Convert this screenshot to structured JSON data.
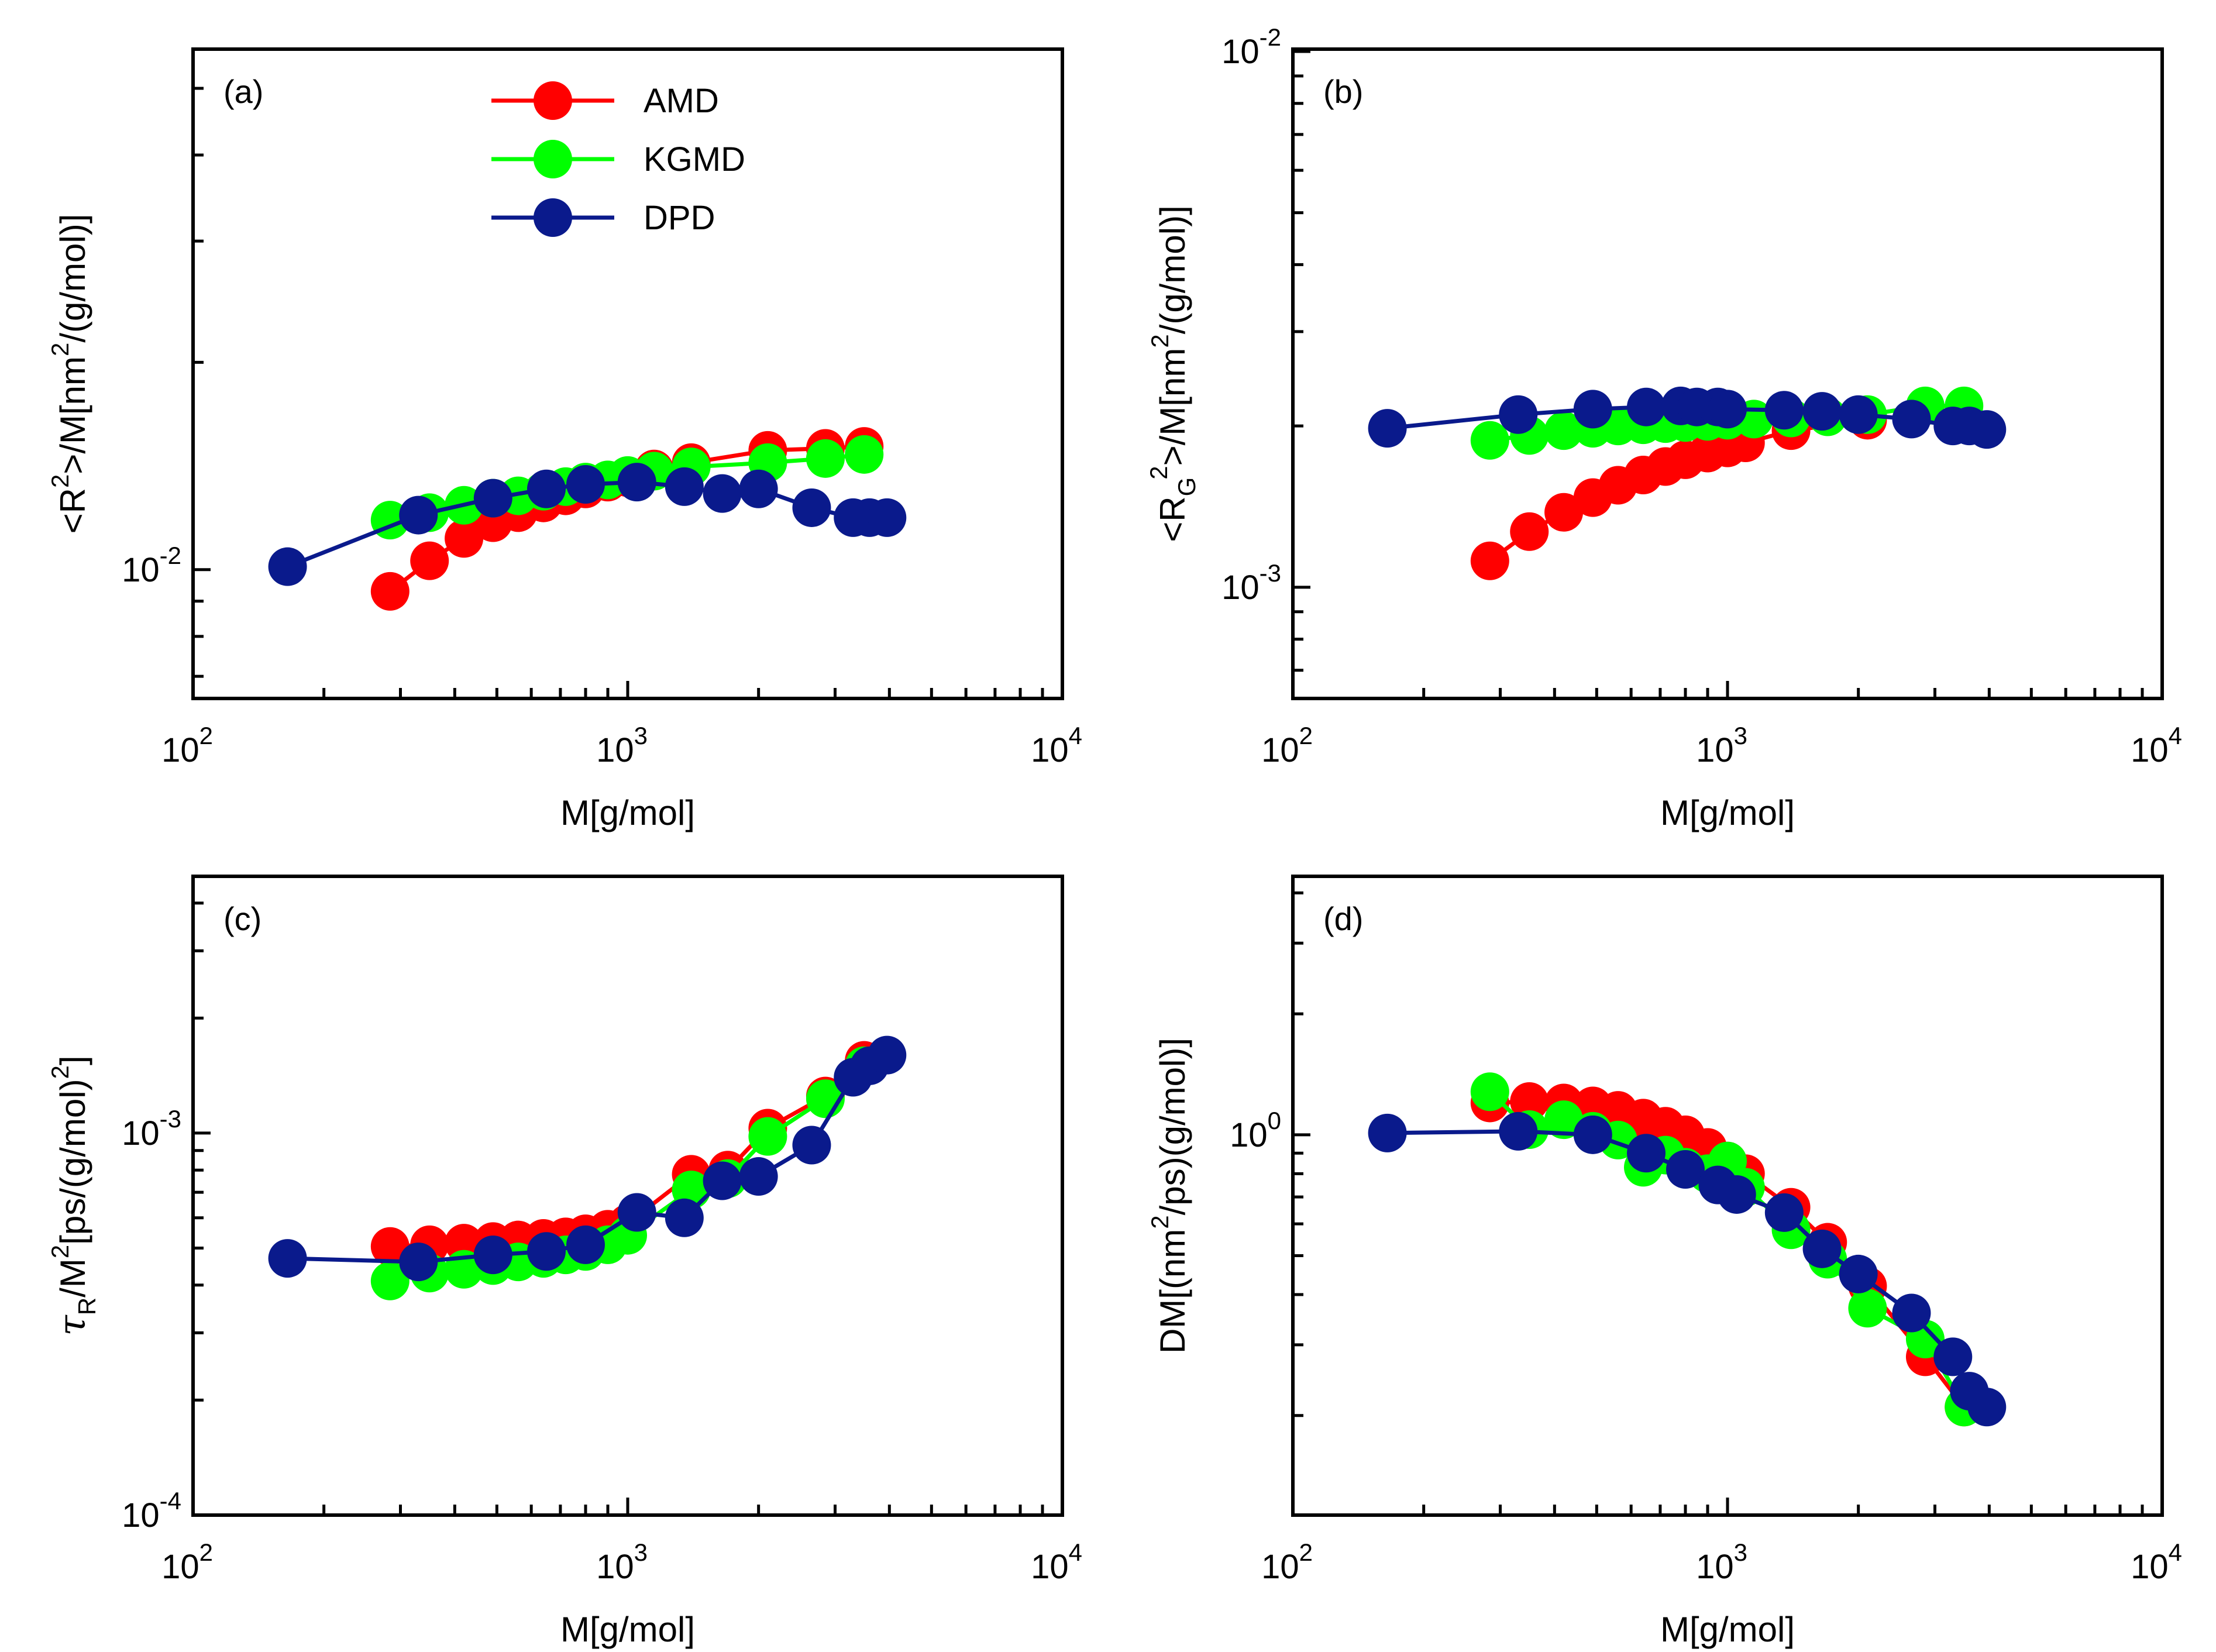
{
  "colors": {
    "AMD": "#ff0000",
    "KGMD": "#00ff00",
    "DPD": "#0a1a8c"
  },
  "legend": [
    {
      "name": "AMD",
      "color": "#ff0000"
    },
    {
      "name": "KGMD",
      "color": "#00ff00"
    },
    {
      "name": "DPD",
      "color": "#0a1a8c"
    }
  ],
  "chart_data": [
    {
      "id": "a",
      "type": "line",
      "panel_label": "(a)",
      "xscale": "log",
      "yscale": "log",
      "xlim": [
        100,
        10000
      ],
      "ylim": [
        0.0065,
        0.057
      ],
      "xlabel": "M[g/mol]",
      "ylabel": {
        "pre": "<R",
        "sup": "2",
        "mid": ">/M[nm",
        "sup2": "2",
        "post": "/(g/mol)]"
      },
      "xticks": [
        {
          "v": 100,
          "base": "10",
          "exp": "2"
        },
        {
          "v": 1000,
          "base": "10",
          "exp": "3"
        },
        {
          "v": 10000,
          "base": "10",
          "exp": "4"
        }
      ],
      "yticks": [
        {
          "v": 0.01,
          "base": "10",
          "exp": "-2"
        }
      ],
      "legend_position": "top-left",
      "series": [
        {
          "name": "AMD",
          "x": [
            284,
            350,
            420,
            490,
            560,
            640,
            720,
            800,
            900,
            1000,
            1150,
            1400,
            2100,
            2850,
            3500
          ],
          "y": [
            0.0093,
            0.0103,
            0.0111,
            0.0117,
            0.0121,
            0.0125,
            0.0128,
            0.0131,
            0.0134,
            0.0136,
            0.014,
            0.0143,
            0.0149,
            0.015,
            0.0151
          ]
        },
        {
          "name": "KGMD",
          "x": [
            284,
            350,
            420,
            490,
            560,
            640,
            720,
            800,
            900,
            1000,
            1150,
            1400,
            2100,
            2850,
            3500
          ],
          "y": [
            0.0118,
            0.0121,
            0.0124,
            0.0127,
            0.0128,
            0.013,
            0.0132,
            0.0134,
            0.0135,
            0.0137,
            0.0139,
            0.0141,
            0.0143,
            0.0145,
            0.0147
          ]
        },
        {
          "name": "DPD",
          "x": [
            165,
            330,
            490,
            650,
            800,
            1050,
            1350,
            1650,
            2000,
            2650,
            3300,
            3600,
            3950
          ],
          "y": [
            0.0101,
            0.012,
            0.0127,
            0.0131,
            0.0133,
            0.0134,
            0.0132,
            0.0129,
            0.0131,
            0.0123,
            0.0119,
            0.0119,
            0.0119
          ]
        }
      ]
    },
    {
      "id": "b",
      "type": "line",
      "panel_label": "(b)",
      "xscale": "log",
      "yscale": "log",
      "xlim": [
        100,
        10000
      ],
      "ylim": [
        0.00062,
        0.0101
      ],
      "xlabel": "M[g/mol]",
      "ylabel": {
        "pre": "<R",
        "sub": "G",
        "sup": "2",
        "mid": ">/M[nm",
        "sup2": "2",
        "post": "/(g/mol)]"
      },
      "xticks": [
        {
          "v": 100,
          "base": "10",
          "exp": "2"
        },
        {
          "v": 1000,
          "base": "10",
          "exp": "3"
        },
        {
          "v": 10000,
          "base": "10",
          "exp": "4"
        }
      ],
      "yticks": [
        {
          "v": 0.001,
          "base": "10",
          "exp": "-3"
        },
        {
          "v": 0.01,
          "base": "10",
          "exp": "-2"
        }
      ],
      "series": [
        {
          "name": "AMD",
          "x": [
            284,
            350,
            420,
            490,
            560,
            640,
            720,
            800,
            900,
            1000,
            1100,
            1400,
            2100
          ],
          "y": [
            0.00112,
            0.00127,
            0.00138,
            0.00147,
            0.00155,
            0.00162,
            0.00168,
            0.00173,
            0.00178,
            0.00182,
            0.00186,
            0.00196,
            0.00205
          ]
        },
        {
          "name": "KGMD",
          "x": [
            284,
            350,
            420,
            490,
            560,
            640,
            720,
            800,
            900,
            1000,
            1150,
            1400,
            1700,
            2100,
            2850,
            3500
          ],
          "y": [
            0.00188,
            0.00192,
            0.00196,
            0.00198,
            0.002,
            0.00201,
            0.00202,
            0.00203,
            0.00204,
            0.00205,
            0.00206,
            0.00207,
            0.00208,
            0.0021,
            0.00218,
            0.00218
          ]
        },
        {
          "name": "DPD",
          "x": [
            165,
            330,
            490,
            650,
            780,
            850,
            950,
            1000,
            1350,
            1650,
            2000,
            2650,
            3300,
            3600,
            3950
          ],
          "y": [
            0.00198,
            0.0021,
            0.00215,
            0.00217,
            0.00218,
            0.00217,
            0.00217,
            0.00215,
            0.00214,
            0.00213,
            0.0021,
            0.00206,
            0.002,
            0.002,
            0.00197
          ]
        }
      ]
    },
    {
      "id": "c",
      "type": "line",
      "panel_label": "(c)",
      "xscale": "log",
      "yscale": "log",
      "xlim": [
        100,
        10000
      ],
      "ylim": [
        0.0001,
        0.0047
      ],
      "xlabel": "M[g/mol]",
      "ylabel": {
        "tau": true,
        "pre": "τ",
        "sub": "R",
        "mid": "/M",
        "sup": "2",
        "post": "[ps/(g/mol)",
        "sup2": "2",
        "end": "]"
      },
      "xticks": [
        {
          "v": 100,
          "base": "10",
          "exp": "2"
        },
        {
          "v": 1000,
          "base": "10",
          "exp": "3"
        },
        {
          "v": 10000,
          "base": "10",
          "exp": "4"
        }
      ],
      "yticks": [
        {
          "v": 0.0001,
          "base": "10",
          "exp": "-4"
        },
        {
          "v": 0.001,
          "base": "10",
          "exp": "-3"
        }
      ],
      "series": [
        {
          "name": "AMD",
          "x": [
            284,
            350,
            420,
            490,
            560,
            640,
            720,
            800,
            900,
            1000,
            1400,
            1700,
            2100,
            2850,
            3500
          ],
          "y": [
            0.000505,
            0.00051,
            0.000515,
            0.00052,
            0.000525,
            0.00053,
            0.000535,
            0.000545,
            0.00056,
            0.00058,
            0.00078,
            0.0008,
            0.00103,
            0.00125,
            0.00155
          ]
        },
        {
          "name": "KGMD",
          "x": [
            284,
            350,
            420,
            490,
            560,
            640,
            720,
            800,
            900,
            1000,
            1400,
            1700,
            2100,
            2850,
            3500
          ],
          "y": [
            0.00041,
            0.00043,
            0.00044,
            0.00045,
            0.00046,
            0.00047,
            0.00048,
            0.00049,
            0.00051,
            0.00054,
            0.00071,
            0.00076,
            0.00098,
            0.00123,
            0.0015
          ]
        },
        {
          "name": "DPD",
          "x": [
            165,
            330,
            490,
            650,
            800,
            1050,
            1350,
            1650,
            2000,
            2650,
            3300,
            3600,
            3950
          ],
          "y": [
            0.00047,
            0.00046,
            0.00048,
            0.00049,
            0.00051,
            0.00062,
            0.0006,
            0.00075,
            0.00077,
            0.00093,
            0.0014,
            0.0015,
            0.0016
          ]
        }
      ]
    },
    {
      "id": "d",
      "type": "line",
      "panel_label": "(d)",
      "xscale": "log",
      "yscale": "log",
      "xlim": [
        100,
        10000
      ],
      "ylim": [
        0.113,
        4.4
      ],
      "xlabel": "M[g/mol]",
      "ylabel": {
        "pre": "DM[(nm",
        "sup": "2",
        "post": "/ps)(g/mol)]"
      },
      "xticks": [
        {
          "v": 100,
          "base": "10",
          "exp": "2"
        },
        {
          "v": 1000,
          "base": "10",
          "exp": "3"
        },
        {
          "v": 10000,
          "base": "10",
          "exp": "4"
        }
      ],
      "yticks": [
        {
          "v": 1,
          "base": "10",
          "exp": "0"
        }
      ],
      "series": [
        {
          "name": "AMD",
          "x": [
            284,
            350,
            420,
            490,
            560,
            640,
            720,
            800,
            900,
            1000,
            1100,
            1400,
            1700,
            2100,
            2850,
            3500
          ],
          "y": [
            1.2,
            1.21,
            1.2,
            1.18,
            1.15,
            1.1,
            1.05,
            1.0,
            0.93,
            0.86,
            0.8,
            0.66,
            0.54,
            0.42,
            0.28,
            0.21
          ]
        },
        {
          "name": "KGMD",
          "x": [
            284,
            350,
            420,
            490,
            560,
            640,
            720,
            800,
            900,
            1000,
            1100,
            1400,
            1700,
            2100,
            2850,
            3500
          ],
          "y": [
            1.28,
            1.03,
            1.09,
            1.02,
            0.97,
            0.83,
            0.89,
            0.83,
            0.8,
            0.86,
            0.74,
            0.58,
            0.49,
            0.37,
            0.31,
            0.21
          ]
        },
        {
          "name": "DPD",
          "x": [
            165,
            330,
            490,
            650,
            800,
            950,
            1050,
            1350,
            1650,
            2000,
            2650,
            3300,
            3600,
            3950
          ],
          "y": [
            1.01,
            1.02,
            1.0,
            0.9,
            0.82,
            0.75,
            0.71,
            0.64,
            0.52,
            0.45,
            0.36,
            0.28,
            0.23,
            0.21
          ]
        }
      ]
    }
  ]
}
